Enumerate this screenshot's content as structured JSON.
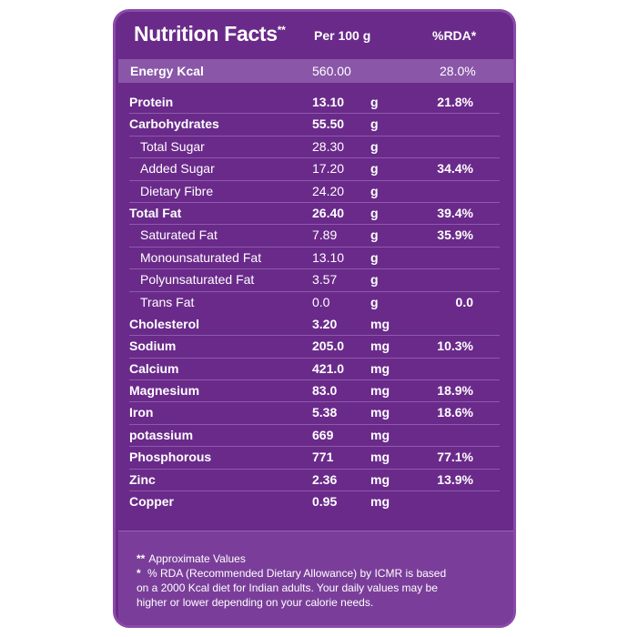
{
  "header": {
    "title": "Nutrition Facts",
    "title_mark": "**",
    "per": "Per 100 g",
    "rda": "%RDA*"
  },
  "energy": {
    "label": "Energy Kcal",
    "value": "560.00",
    "rda": "28.0%"
  },
  "rows": [
    {
      "label": "Protein",
      "value": "13.10",
      "unit": "g",
      "rda": "21.8%",
      "sub": false
    },
    {
      "label": "Carbohydrates",
      "value": "55.50",
      "unit": "g",
      "rda": "",
      "sub": false
    },
    {
      "label": "Total Sugar",
      "value": "28.30",
      "unit": "g",
      "rda": "",
      "sub": true
    },
    {
      "label": "Added Sugar",
      "value": "17.20",
      "unit": "g",
      "rda": "34.4%",
      "sub": true
    },
    {
      "label": "Dietary Fibre",
      "value": "24.20",
      "unit": "g",
      "rda": "",
      "sub": true
    },
    {
      "label": "Total Fat",
      "value": "26.40",
      "unit": "g",
      "rda": "39.4%",
      "sub": false
    },
    {
      "label": "Saturated Fat",
      "value": "7.89",
      "unit": "g",
      "rda": "35.9%",
      "sub": true
    },
    {
      "label": "Monounsaturated Fat",
      "value": "13.10",
      "unit": "g",
      "rda": "",
      "sub": true
    },
    {
      "label": "Polyunsaturated Fat",
      "value": "3.57",
      "unit": "g",
      "rda": "",
      "sub": true
    },
    {
      "label": "Trans Fat",
      "value": "0.0",
      "unit": "g",
      "rda": "0.0",
      "sub": true
    },
    {
      "label": "Cholesterol",
      "value": "3.20",
      "unit": "mg",
      "rda": "",
      "sub": false
    },
    {
      "label": "Sodium",
      "value": "205.0",
      "unit": "mg",
      "rda": "10.3%",
      "sub": false
    },
    {
      "label": "Calcium",
      "value": "421.0",
      "unit": "mg",
      "rda": "",
      "sub": false
    },
    {
      "label": "Magnesium",
      "value": "83.0",
      "unit": "mg",
      "rda": "18.9%",
      "sub": false
    },
    {
      "label": "Iron",
      "value": "5.38",
      "unit": "mg",
      "rda": "18.6%",
      "sub": false
    },
    {
      "label": "potassium",
      "value": "669",
      "unit": "mg",
      "rda": "",
      "sub": false
    },
    {
      "label": "Phosphorous",
      "value": "771",
      "unit": "mg",
      "rda": "77.1%",
      "sub": false
    },
    {
      "label": "Zinc",
      "value": "2.36",
      "unit": "mg",
      "rda": "13.9%",
      "sub": false
    },
    {
      "label": "Copper",
      "value": "0.95",
      "unit": "mg",
      "rda": "",
      "sub": false
    }
  ],
  "footer": {
    "note1_mark": "**",
    "note1": "Approximate Values",
    "note2_mark": "*",
    "note2_line1": "% RDA (Recommended Dietary Allowance) by ICMR is based",
    "note2_line2": "on a 2000 Kcal diet for Indian adults. Your daily values may be",
    "note2_line3": "higher or lower depending on your calorie needs."
  },
  "colors": {
    "panel": "#6a2a8a",
    "energy_band": "#8a56a8",
    "footer": "#7a3e9a"
  }
}
